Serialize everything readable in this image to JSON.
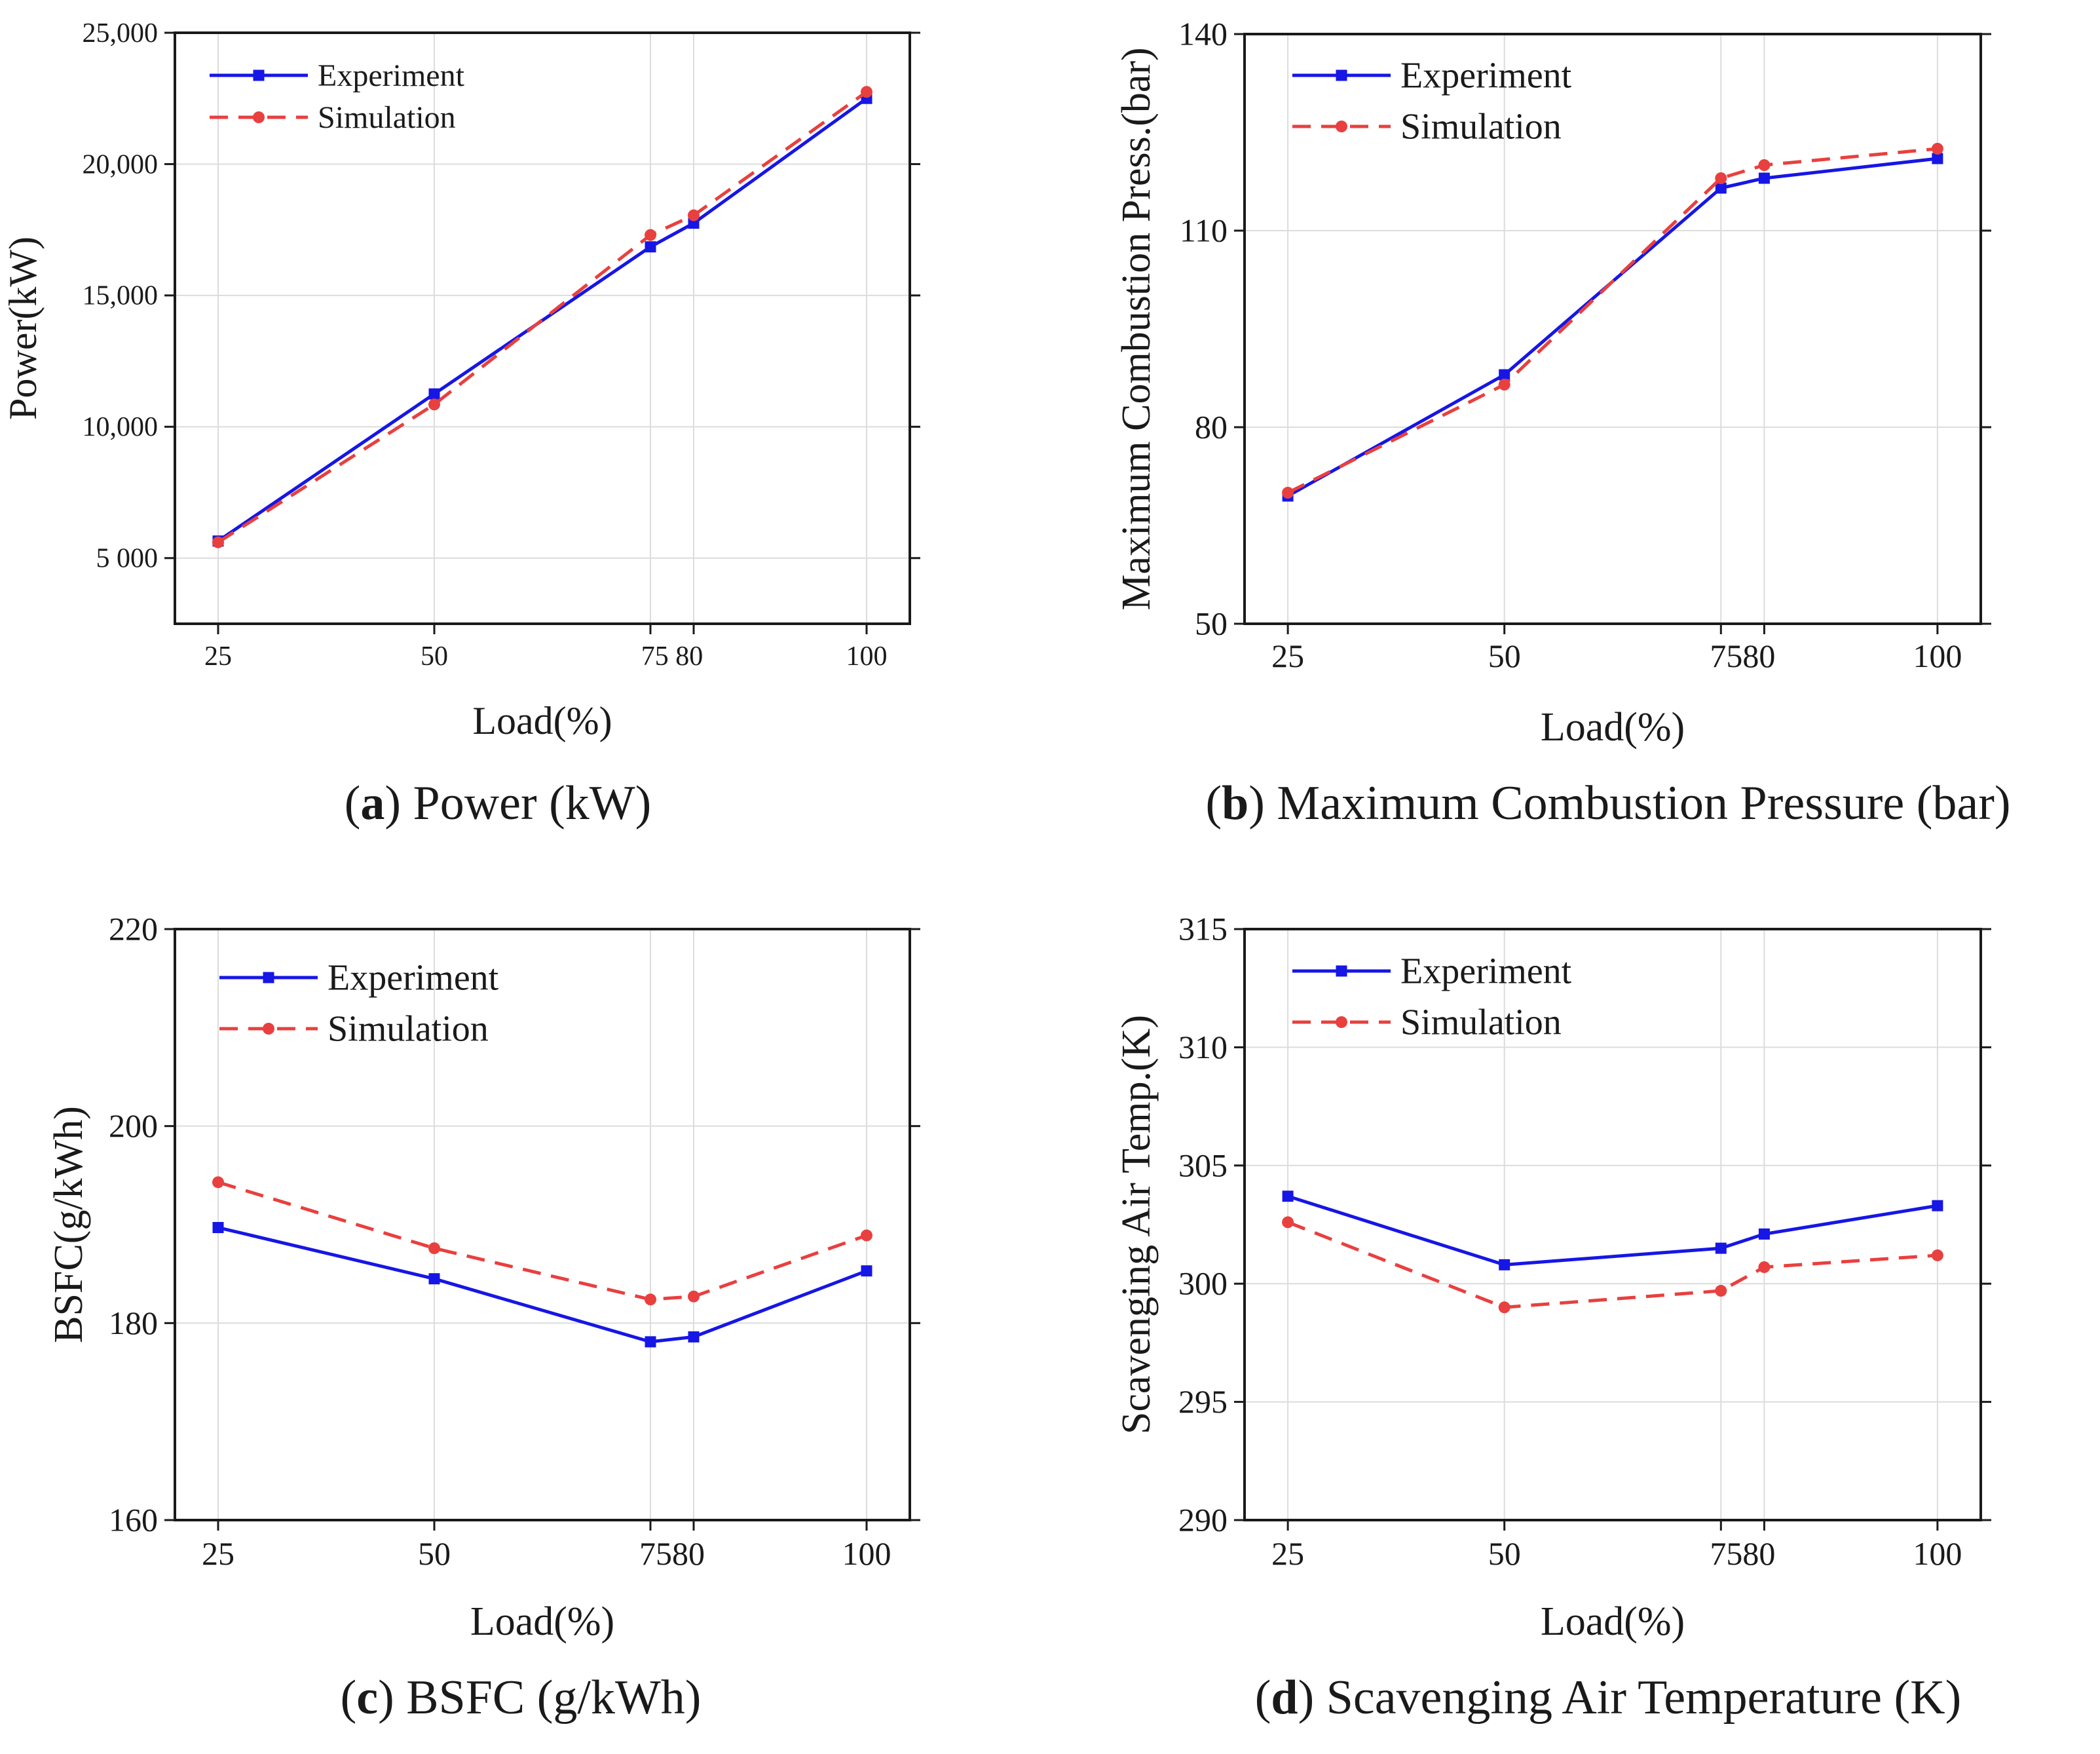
{
  "colors": {
    "experiment": "#1616e6",
    "simulation": "#e8403f",
    "axis": "#1a1a1a",
    "grid": "#dcdcdc"
  },
  "chart_data": [
    {
      "type": "line",
      "caption": {
        "letter": "a",
        "text": ") Power (kW)"
      },
      "xlabel": "Load(%)",
      "ylabel": "Power(kW)",
      "xlim": [
        20,
        105
      ],
      "ylim": [
        2500,
        25000
      ],
      "x_ticks": [
        25,
        50,
        75,
        80,
        100
      ],
      "x_tick_labels": [
        {
          "x": 25,
          "text": "25"
        },
        {
          "x": 50,
          "text": "50"
        },
        {
          "x": 77.5,
          "text": "75 80"
        },
        {
          "x": 100,
          "text": "100"
        }
      ],
      "y_ticks": [
        5000,
        10000,
        15000,
        20000,
        25000
      ],
      "y_tick_labels": [
        "5 000",
        "10,000",
        "15,000",
        "20,000",
        "25,000"
      ],
      "x": [
        25,
        50,
        75,
        80,
        100
      ],
      "series": [
        {
          "name": "Experiment",
          "values": [
            5650,
            11250,
            16850,
            17750,
            22500
          ]
        },
        {
          "name": "Simulation",
          "values": [
            5600,
            10850,
            17300,
            18050,
            22750
          ]
        }
      ]
    },
    {
      "type": "line",
      "caption": {
        "letter": "b",
        "text": ") Maximum Combustion Pressure (bar)"
      },
      "xlabel": "Load(%)",
      "ylabel": "Maximum Combustion Press.(bar)",
      "xlim": [
        20,
        105
      ],
      "ylim": [
        50,
        140
      ],
      "x_ticks": [
        25,
        50,
        75,
        80,
        100
      ],
      "x_tick_labels": [
        {
          "x": 25,
          "text": "25"
        },
        {
          "x": 50,
          "text": "50"
        },
        {
          "x": 77.5,
          "text": "7580"
        },
        {
          "x": 100,
          "text": "100"
        }
      ],
      "y_ticks": [
        50,
        80,
        110,
        140
      ],
      "y_tick_labels": [
        "50",
        "80",
        "110",
        "140"
      ],
      "x": [
        25,
        50,
        75,
        80,
        100
      ],
      "series": [
        {
          "name": "Experiment",
          "values": [
            69.5,
            88,
            116.5,
            118,
            121
          ]
        },
        {
          "name": "Simulation",
          "values": [
            70,
            86.5,
            118,
            120,
            122.5
          ]
        }
      ]
    },
    {
      "type": "line",
      "caption": {
        "letter": "c",
        "text": ") BSFC (g/kWh)"
      },
      "xlabel": "Load(%)",
      "ylabel": "BSFC(g/kWh)",
      "xlim": [
        20,
        105
      ],
      "ylim": [
        160,
        220
      ],
      "x_ticks": [
        25,
        50,
        75,
        80,
        100
      ],
      "x_tick_labels": [
        {
          "x": 25,
          "text": "25"
        },
        {
          "x": 50,
          "text": "50"
        },
        {
          "x": 77.5,
          "text": "7580"
        },
        {
          "x": 100,
          "text": "100"
        }
      ],
      "y_ticks": [
        160,
        180,
        200,
        220
      ],
      "y_tick_labels": [
        "160",
        "180",
        "200",
        "220"
      ],
      "x": [
        25,
        50,
        75,
        80,
        100
      ],
      "series": [
        {
          "name": "Experiment",
          "values": [
            189.7,
            184.5,
            178.1,
            178.6,
            185.3
          ]
        },
        {
          "name": "Simulation",
          "values": [
            194.3,
            187.6,
            182.4,
            182.7,
            188.9
          ]
        }
      ]
    },
    {
      "type": "line",
      "caption": {
        "letter": "d",
        "text": ") Scavenging Air Temperature (K)"
      },
      "xlabel": "Load(%)",
      "ylabel": "Scavenging Air Temp.(K)",
      "xlim": [
        20,
        105
      ],
      "ylim": [
        290,
        315
      ],
      "x_ticks": [
        25,
        50,
        75,
        80,
        100
      ],
      "x_tick_labels": [
        {
          "x": 25,
          "text": "25"
        },
        {
          "x": 50,
          "text": "50"
        },
        {
          "x": 77.5,
          "text": "7580"
        },
        {
          "x": 100,
          "text": "100"
        }
      ],
      "y_ticks": [
        290,
        295,
        300,
        305,
        310,
        315
      ],
      "y_tick_labels": [
        "290",
        "295",
        "300",
        "305",
        "310",
        "315"
      ],
      "x": [
        25,
        50,
        75,
        80,
        100
      ],
      "series": [
        {
          "name": "Experiment",
          "values": [
            303.7,
            300.8,
            301.5,
            302.1,
            303.3
          ]
        },
        {
          "name": "Simulation",
          "values": [
            302.6,
            299.0,
            299.7,
            300.7,
            301.2
          ]
        }
      ]
    }
  ]
}
